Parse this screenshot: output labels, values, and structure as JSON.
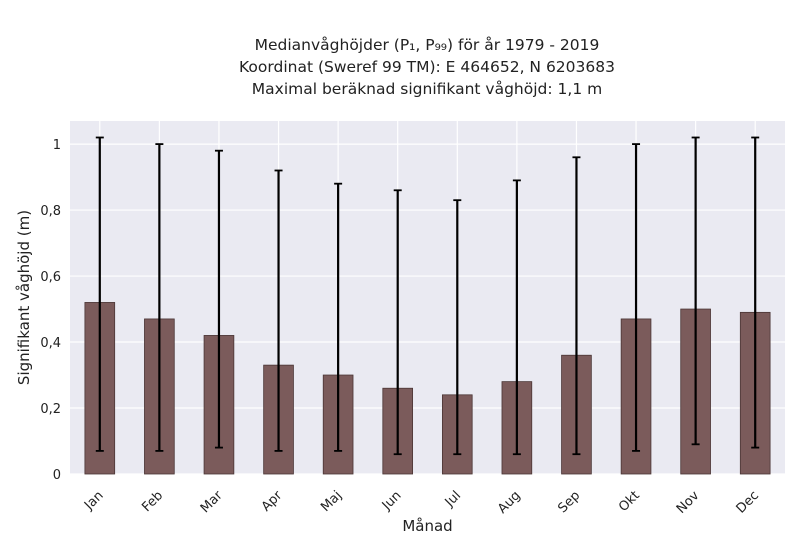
{
  "title": {
    "line1": "Medianvåghöjder (P₁, P₉₉) för år 1979 - 2019",
    "line2": "Koordinat (Sweref 99 TM): E 464652, N 6203683",
    "line3": "Maximal beräknad signifikant våghöjd: 1,1 m"
  },
  "chart_data": {
    "type": "bar",
    "xlabel": "Månad",
    "ylabel": "Signifikant våghöjd (m)",
    "ylim": [
      0,
      1.07
    ],
    "yticks": [
      0,
      0.2,
      0.4,
      0.6,
      0.8,
      1
    ],
    "ytick_labels": [
      "0",
      "0,2",
      "0,4",
      "0,6",
      "0,8",
      "1"
    ],
    "categories": [
      "Jan",
      "Feb",
      "Mar",
      "Apr",
      "Maj",
      "Jun",
      "Jul",
      "Aug",
      "Sep",
      "Okt",
      "Nov",
      "Dec"
    ],
    "values": [
      0.52,
      0.47,
      0.42,
      0.33,
      0.3,
      0.26,
      0.24,
      0.28,
      0.36,
      0.47,
      0.5,
      0.49
    ],
    "p1": [
      0.07,
      0.07,
      0.08,
      0.07,
      0.07,
      0.06,
      0.06,
      0.06,
      0.06,
      0.07,
      0.09,
      0.08
    ],
    "p99": [
      1.02,
      1.0,
      0.98,
      0.92,
      0.88,
      0.86,
      0.83,
      0.89,
      0.96,
      1.0,
      1.02,
      1.02
    ],
    "grid": true,
    "colors": {
      "bar": "#7b5b5b",
      "bar_edge": "#4a3535",
      "error": "#000000",
      "plot_bg": "#eaeaf2",
      "grid": "#ffffff"
    }
  }
}
